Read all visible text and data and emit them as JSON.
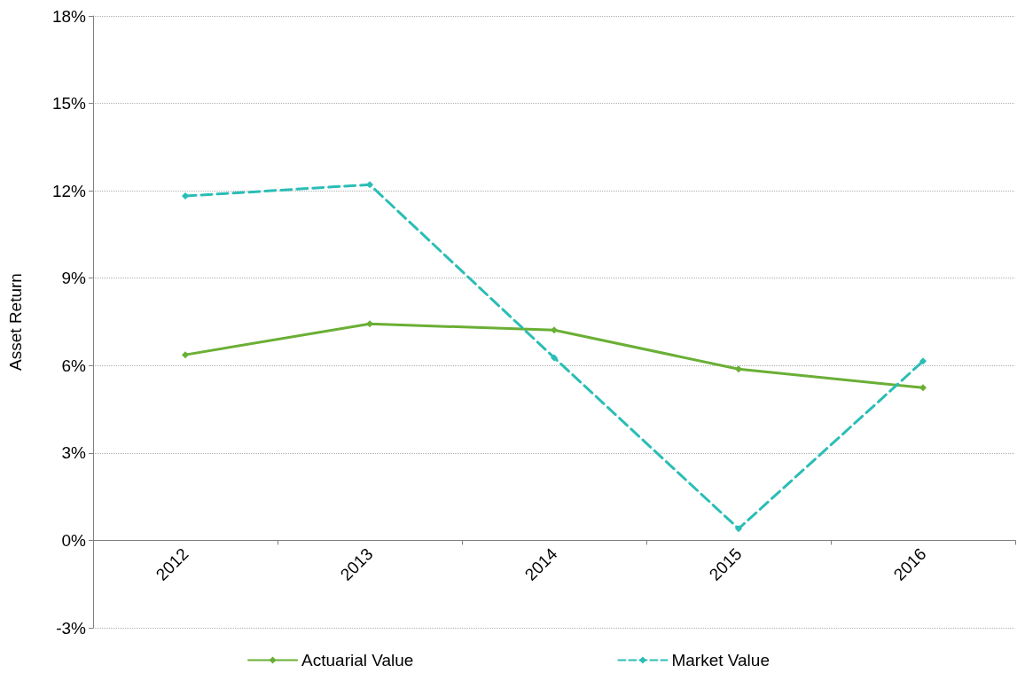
{
  "chart_data": {
    "type": "line",
    "ylabel": "Asset Return",
    "categories": [
      "2012",
      "2013",
      "2014",
      "2015",
      "2016"
    ],
    "series": [
      {
        "name": "Actuarial Value",
        "color": "#6aaf35",
        "values": [
          6.37,
          7.43,
          7.22,
          5.88,
          5.24
        ],
        "line_style": "solid"
      },
      {
        "name": "Market Value",
        "color": "#2bbdb6",
        "values": [
          11.82,
          12.21,
          6.27,
          0.4,
          6.15
        ],
        "line_style": "dashed"
      }
    ],
    "ylim": [
      -3,
      18
    ],
    "yticks": [
      {
        "value": -3,
        "label": "-3%"
      },
      {
        "value": 0,
        "label": "0%"
      },
      {
        "value": 3,
        "label": "3%"
      },
      {
        "value": 6,
        "label": "6%"
      },
      {
        "value": 9,
        "label": "9%"
      },
      {
        "value": 12,
        "label": "12%"
      },
      {
        "value": 15,
        "label": "15%"
      },
      {
        "value": 18,
        "label": "18%"
      }
    ],
    "grid": "y",
    "legend": "bottom",
    "marker": "diamond"
  }
}
